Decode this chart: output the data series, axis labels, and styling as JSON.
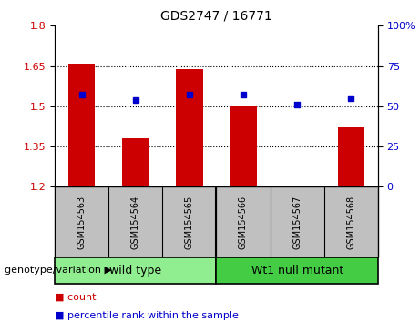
{
  "title": "GDS2747 / 16771",
  "categories": [
    "GSM154563",
    "GSM154564",
    "GSM154565",
    "GSM154566",
    "GSM154567",
    "GSM154568"
  ],
  "bar_values": [
    1.66,
    1.38,
    1.64,
    1.5,
    1.2,
    1.42
  ],
  "percentile_values": [
    57,
    54,
    57,
    57,
    51,
    55
  ],
  "ylim_left": [
    1.2,
    1.8
  ],
  "ylim_right": [
    0,
    100
  ],
  "yticks_left": [
    1.2,
    1.35,
    1.5,
    1.65,
    1.8
  ],
  "yticks_right": [
    0,
    25,
    50,
    75,
    100
  ],
  "bar_color": "#cc0000",
  "dot_color": "#0000cc",
  "bar_bottom": 1.2,
  "group1_label": "wild type",
  "group2_label": "Wt1 null mutant",
  "group1_color": "#90ee90",
  "group2_color": "#44cc44",
  "genotype_label": "genotype/variation",
  "legend_count_label": "count",
  "legend_percentile_label": "percentile rank within the sample",
  "tick_label_color_left": "#cc0000",
  "tick_label_color_right": "#0000cc",
  "xlabel_bg_color": "#c0c0c0",
  "hline_ticks": [
    1.35,
    1.5,
    1.65
  ],
  "bar_width": 0.5,
  "dot_marker_size": 5,
  "title_fontsize": 10,
  "tick_fontsize": 8,
  "cat_fontsize": 7,
  "group_fontsize": 9,
  "legend_fontsize": 8,
  "genotype_fontsize": 8
}
